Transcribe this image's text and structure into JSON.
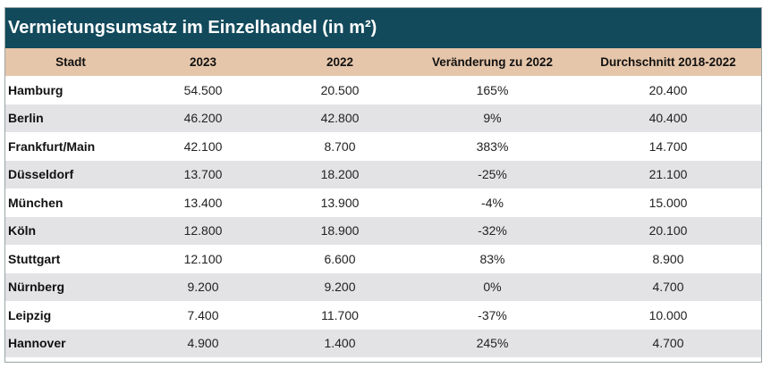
{
  "chart_data": {
    "type": "table",
    "title": "Vermietungsumsatz im Einzelhandel (in m²)",
    "columns": [
      "Stadt",
      "2023",
      "2022",
      "Veränderung zu 2022",
      "Durchschnitt  2018-2022"
    ],
    "rows": [
      [
        "Hamburg",
        "54.500",
        "20.500",
        "165%",
        "20.400"
      ],
      [
        "Berlin",
        "46.200",
        "42.800",
        "9%",
        "40.400"
      ],
      [
        "Frankfurt/Main",
        "42.100",
        "8.700",
        "383%",
        "14.700"
      ],
      [
        "Düsseldorf",
        "13.700",
        "18.200",
        "-25%",
        "21.100"
      ],
      [
        "München",
        "13.400",
        "13.900",
        "-4%",
        "15.000"
      ],
      [
        "Köln",
        "12.800",
        "18.900",
        "-32%",
        "20.100"
      ],
      [
        "Stuttgart",
        "12.100",
        "6.600",
        "83%",
        "8.900"
      ],
      [
        "Nürnberg",
        "9.200",
        "9.200",
        "0%",
        "4.700"
      ],
      [
        "Leipzig",
        "7.400",
        "11.700",
        "-37%",
        "10.000"
      ],
      [
        "Hannover",
        "4.900",
        "1.400",
        "245%",
        "4.700"
      ]
    ]
  },
  "colors": {
    "title_background": "#124a5c",
    "title_text": "#ffffff",
    "header_background": "#e6c6aa",
    "band_row_background": "#e3e3e6",
    "row_background": "#ffffff"
  }
}
